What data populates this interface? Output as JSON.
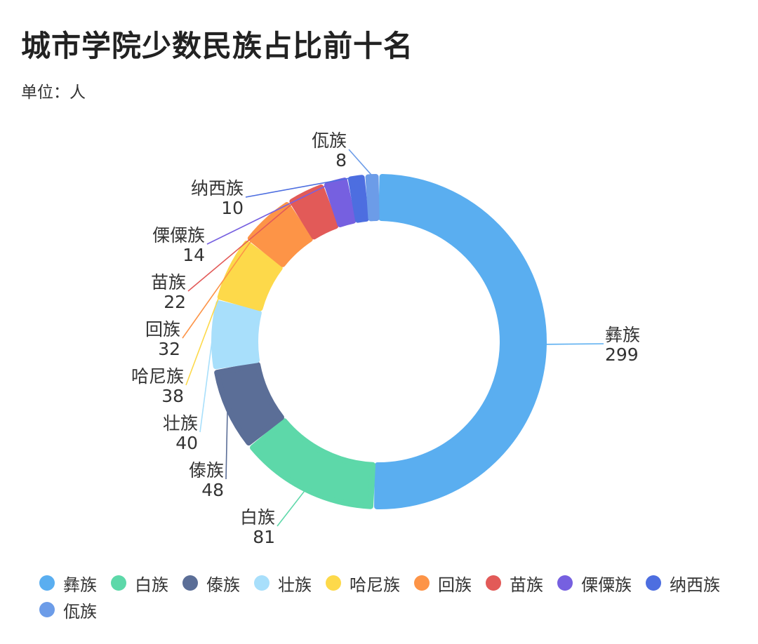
{
  "title": "城市学院少数民族占比前十名",
  "subtitle": "单位：人",
  "chart_data": {
    "type": "pie",
    "title": "城市学院少数民族占比前十名",
    "unit": "单位：人",
    "series": [
      {
        "name": "彝族",
        "value": 299,
        "color": "#5aaef0"
      },
      {
        "name": "白族",
        "value": 81,
        "color": "#5dd8a9"
      },
      {
        "name": "傣族",
        "value": 48,
        "color": "#5b6e97"
      },
      {
        "name": "壮族",
        "value": 40,
        "color": "#a8dffb"
      },
      {
        "name": "哈尼族",
        "value": 38,
        "color": "#fdd94a"
      },
      {
        "name": "回族",
        "value": 32,
        "color": "#fd9447"
      },
      {
        "name": "苗族",
        "value": 22,
        "color": "#e25a58"
      },
      {
        "name": "傈僳族",
        "value": 14,
        "color": "#7660e0"
      },
      {
        "name": "纳西族",
        "value": 10,
        "color": "#4d6ee0"
      },
      {
        "name": "佤族",
        "value": 8,
        "color": "#6c9ce8"
      }
    ],
    "legend_position": "bottom"
  }
}
